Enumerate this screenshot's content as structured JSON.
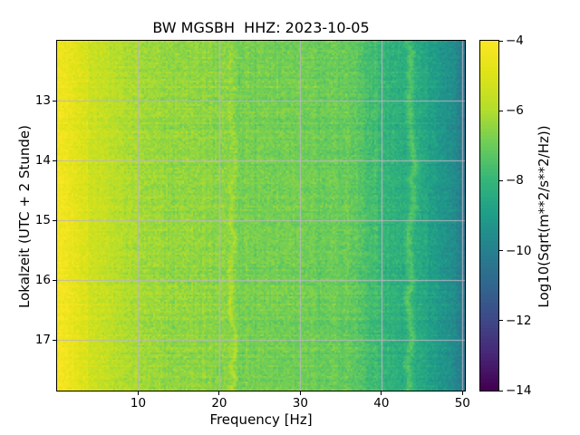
{
  "figure": {
    "background_color": "#ffffff",
    "grid_color": "#b9b6bf"
  },
  "title": "BW MGSBH  HHZ: 2023-10-05",
  "axes": {
    "xlabel": "Frequency [Hz]",
    "ylabel": "Lokalzeit (UTC + 2 Stunde)",
    "xtick_labels": [
      "10",
      "20",
      "30",
      "40",
      "50"
    ],
    "ytick_labels": [
      "13",
      "14",
      "15",
      "16",
      "17"
    ]
  },
  "colorbar": {
    "label": "Log10(Sqrt(m**2/s**2/Hz))",
    "tick_labels": [
      "−4",
      "−6",
      "−8",
      "−10",
      "−12",
      "−14"
    ]
  },
  "chart_data": {
    "type": "heatmap",
    "subtype": "seismic-spectrogram",
    "title": "BW MGSBH  HHZ: 2023-10-05",
    "xlabel": "Frequency [Hz]",
    "ylabel": "Lokalzeit (UTC + 2 Stunde)",
    "colorbar_label": "Log10(Sqrt(m**2/s**2/Hz))",
    "colormap": "viridis",
    "grid": true,
    "legend": "colorbar-right",
    "xlim": [
      0,
      50.3
    ],
    "ylim_hours": [
      12.0,
      17.84
    ],
    "xticks": [
      10,
      20,
      30,
      40,
      50
    ],
    "yticks_hours": [
      13,
      14,
      15,
      16,
      17
    ],
    "clim": [
      -14,
      -4
    ],
    "colorbar_ticks": [
      -4,
      -6,
      -8,
      -10,
      -12,
      -14
    ],
    "spectral_profile": {
      "freq_hz": [
        0,
        0.8,
        1.8,
        3,
        4.5,
        6.5,
        8.5,
        10,
        12,
        15,
        18,
        21.3,
        22.2,
        25,
        28,
        31,
        34,
        36.5,
        37.8,
        39,
        40.5,
        42.5,
        44.5,
        46,
        47.5,
        49,
        50.3
      ],
      "log_amp": [
        -4.45,
        -4.55,
        -4.75,
        -5.05,
        -5.45,
        -5.8,
        -6.05,
        -6.2,
        -6.35,
        -6.5,
        -6.55,
        -6.6,
        -6.85,
        -6.85,
        -6.9,
        -7.0,
        -7.05,
        -7.15,
        -7.5,
        -7.9,
        -8.15,
        -8.3,
        -8.45,
        -8.8,
        -9.2,
        -9.7,
        -10.6
      ]
    },
    "spectral_lines_hz": [
      {
        "freq": 21.6,
        "amp": 0.55,
        "sigma": 0.22,
        "wander": 0.28,
        "time_gain": [
          0.45,
          1.45
        ],
        "note": "wiggly resonance ridge, brighter later in day"
      },
      {
        "freq": 39.3,
        "amp": 0.22,
        "sigma": 0.25,
        "wander": 0.1,
        "time_gain": [
          1.0,
          1.0
        ],
        "note": "faint narrow line"
      },
      {
        "freq": 43.5,
        "amp": 0.95,
        "sigma": 0.33,
        "wander": 0.34,
        "time_gain": [
          1.0,
          1.0
        ],
        "note": "bright wiggly ridge on teal background"
      }
    ],
    "low_freq_time_brightening": 0.3,
    "noise_std": 0.22,
    "row_noise_std": 0.09,
    "col_noise_std": 0.07,
    "viridis_stops": [
      [
        0.0,
        "#440154"
      ],
      [
        0.1,
        "#482878"
      ],
      [
        0.2,
        "#3e4a89"
      ],
      [
        0.3,
        "#31688e"
      ],
      [
        0.4,
        "#26828e"
      ],
      [
        0.5,
        "#1f9e89"
      ],
      [
        0.6,
        "#35b779"
      ],
      [
        0.7,
        "#6dcd59"
      ],
      [
        0.8,
        "#b4de2c"
      ],
      [
        0.9,
        "#dfe318"
      ],
      [
        1.0,
        "#fde725"
      ]
    ]
  }
}
